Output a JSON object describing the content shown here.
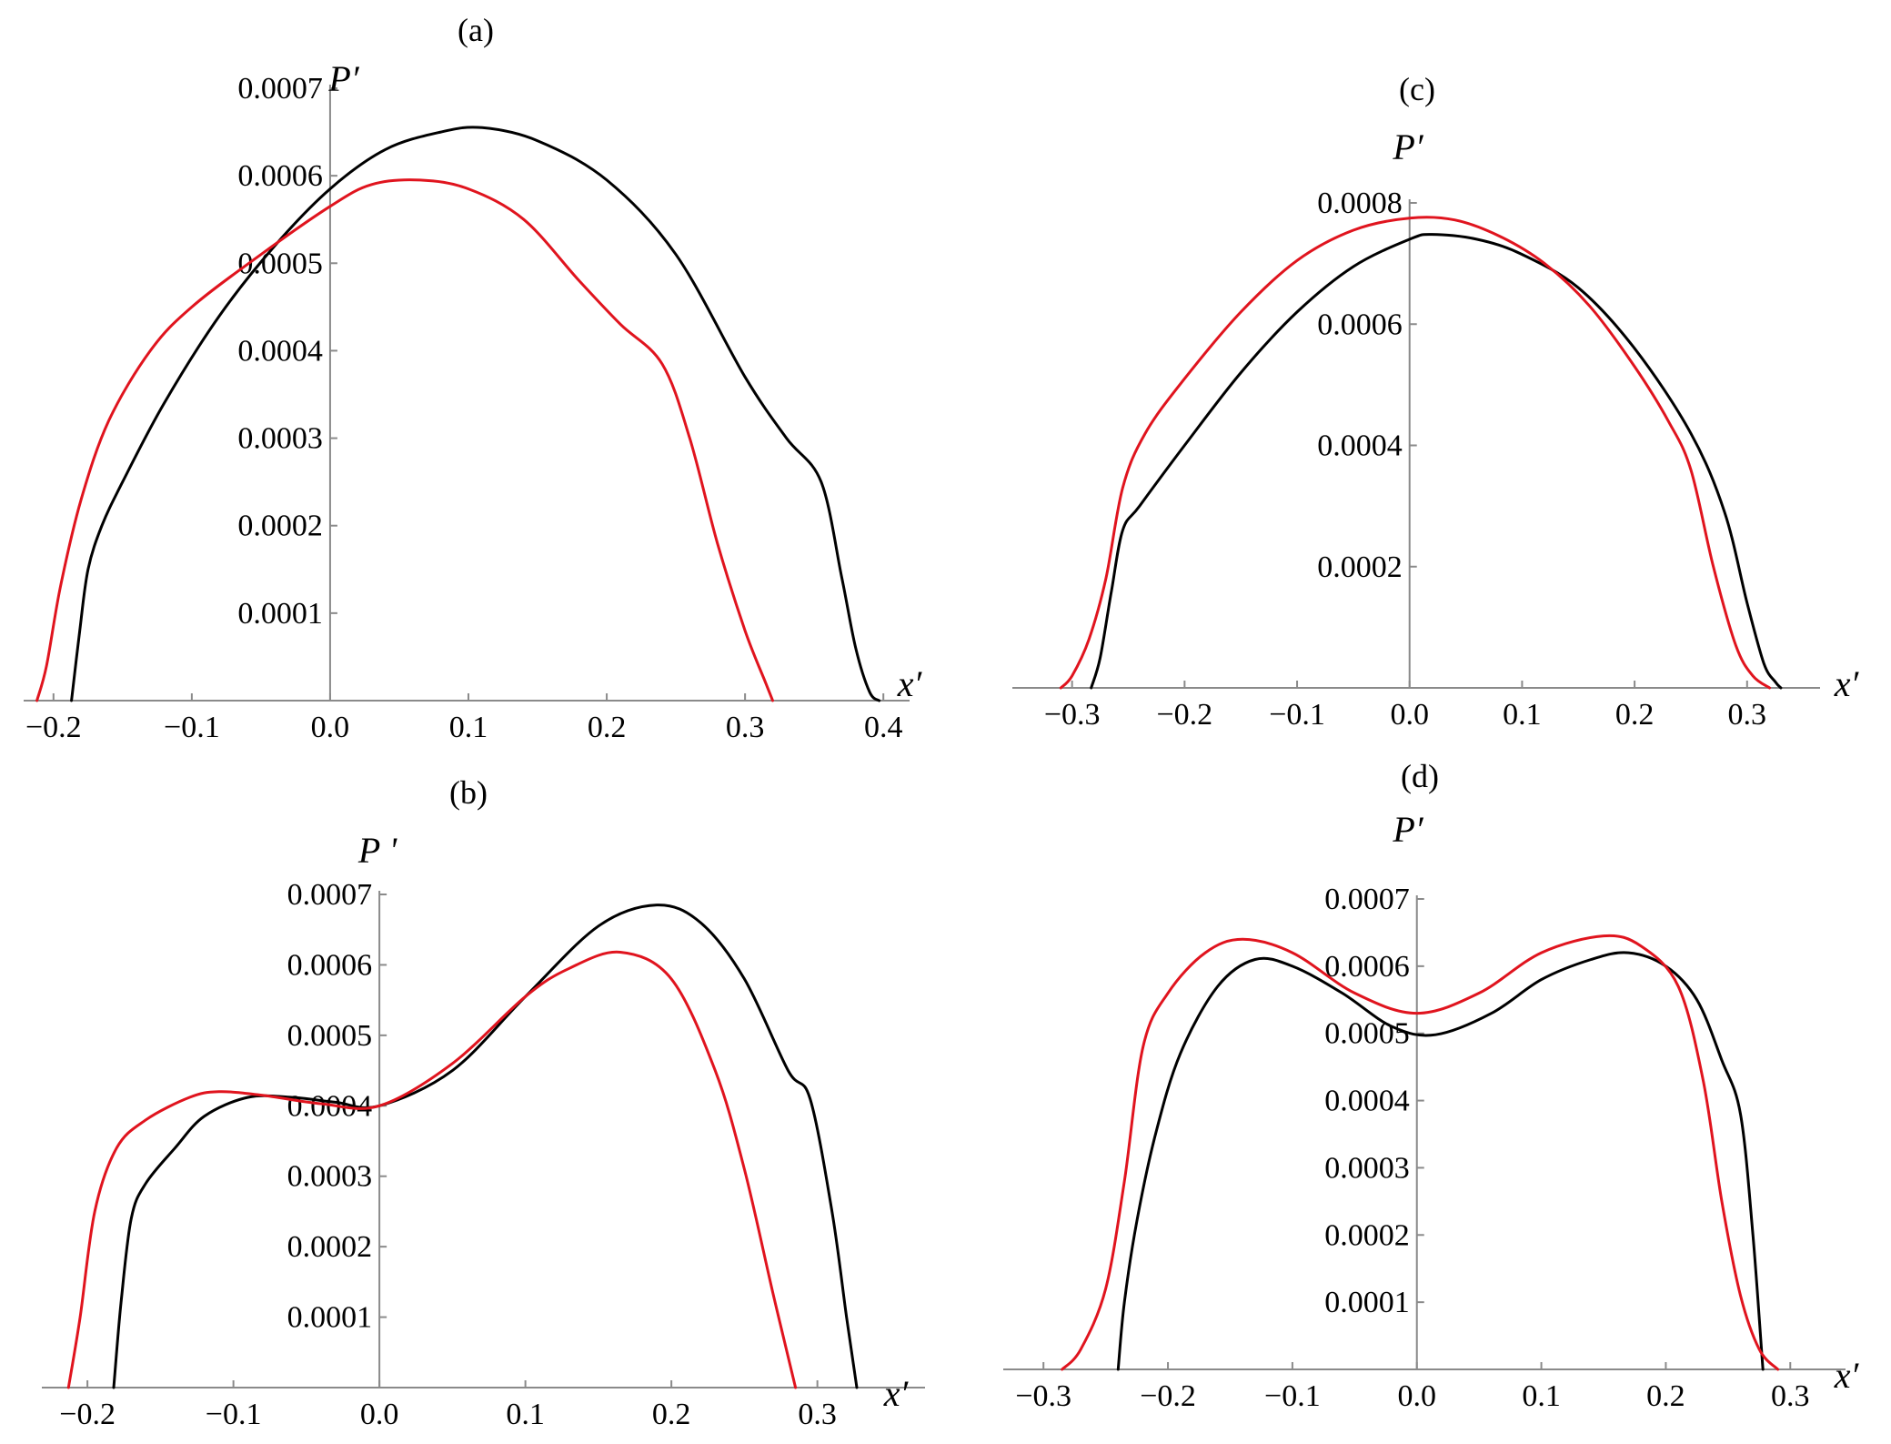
{
  "colors": {
    "series_black": "#000000",
    "series_red": "#e0141e",
    "axis": "#8a8a8a"
  },
  "chart_data": [
    {
      "id": "a",
      "type": "line",
      "panel_label": "(a)",
      "xlabel": "x′",
      "ylabel": "P′",
      "xlim": [
        -0.215,
        0.415
      ],
      "ylim": [
        0,
        0.0007
      ],
      "x_ticks": [
        -0.2,
        -0.1,
        0.0,
        0.1,
        0.2,
        0.3,
        0.4
      ],
      "x_tick_labels": [
        "−0.2",
        "−0.1",
        "0.0",
        "0.1",
        "0.2",
        "0.3",
        "0.4"
      ],
      "y_ticks": [
        0.0001,
        0.0002,
        0.0003,
        0.0004,
        0.0005,
        0.0006,
        0.0007
      ],
      "y_tick_labels": [
        "0.0001",
        "0.0002",
        "0.0003",
        "0.0004",
        "0.0005",
        "0.0006",
        "0.0007"
      ],
      "series": [
        {
          "color": "#000000",
          "x": [
            -0.187,
            -0.181,
            -0.175,
            -0.165,
            -0.15,
            -0.12,
            -0.08,
            -0.04,
            0.0,
            0.04,
            0.08,
            0.11,
            0.15,
            0.2,
            0.25,
            0.3,
            0.33,
            0.355,
            0.37,
            0.38,
            0.39,
            0.397
          ],
          "y": [
            0.0,
            8e-05,
            0.00015,
            0.0002,
            0.00025,
            0.00034,
            0.00044,
            0.00052,
            0.000585,
            0.00063,
            0.00065,
            0.000655,
            0.00064,
            0.000595,
            0.00051,
            0.00037,
            0.0003,
            0.00025,
            0.00014,
            6e-05,
            1e-05,
            0.0
          ]
        },
        {
          "color": "#e0141e",
          "x": [
            -0.212,
            -0.205,
            -0.195,
            -0.18,
            -0.16,
            -0.13,
            -0.1,
            -0.05,
            0.0,
            0.03,
            0.065,
            0.1,
            0.14,
            0.18,
            0.21,
            0.24,
            0.26,
            0.28,
            0.3,
            0.315,
            0.32
          ],
          "y": [
            0.0,
            4e-05,
            0.00013,
            0.00023,
            0.00032,
            0.0004,
            0.00045,
            0.00051,
            0.000565,
            0.00059,
            0.000595,
            0.000585,
            0.00055,
            0.00048,
            0.00043,
            0.000385,
            0.0003,
            0.00018,
            8e-05,
            2e-05,
            0.0
          ]
        }
      ]
    },
    {
      "id": "b",
      "type": "line",
      "panel_label": "(b)",
      "xlabel": "x′",
      "ylabel": "P '",
      "xlim": [
        -0.225,
        0.37
      ],
      "ylim": [
        0,
        0.0007
      ],
      "x_ticks": [
        -0.2,
        -0.1,
        0.0,
        0.1,
        0.2,
        0.3
      ],
      "x_tick_labels": [
        "−0.2",
        "−0.1",
        "0.0",
        "0.1",
        "0.2",
        "0.3"
      ],
      "y_ticks": [
        0.0001,
        0.0002,
        0.0003,
        0.0004,
        0.0005,
        0.0006,
        0.0007
      ],
      "y_tick_labels": [
        "0.0001",
        "0.0002",
        "0.0003",
        "0.0004",
        "0.0005",
        "0.0006",
        "0.0007"
      ],
      "series": [
        {
          "color": "#000000",
          "x": [
            -0.182,
            -0.177,
            -0.17,
            -0.16,
            -0.14,
            -0.12,
            -0.09,
            -0.06,
            -0.03,
            0.0,
            0.05,
            0.1,
            0.15,
            0.19,
            0.22,
            0.25,
            0.28,
            0.295,
            0.31,
            0.32,
            0.327
          ],
          "y": [
            0.0,
            0.00012,
            0.00024,
            0.00029,
            0.00034,
            0.000385,
            0.000412,
            0.000412,
            0.000405,
            0.0004,
            0.00045,
            0.000555,
            0.000655,
            0.000685,
            0.00066,
            0.00058,
            0.00045,
            0.00041,
            0.00025,
            0.0001,
            0.0
          ]
        },
        {
          "color": "#e0141e",
          "x": [
            -0.213,
            -0.205,
            -0.195,
            -0.18,
            -0.16,
            -0.13,
            -0.11,
            -0.08,
            -0.04,
            0.0,
            0.05,
            0.1,
            0.13,
            0.165,
            0.2,
            0.23,
            0.25,
            0.27,
            0.285
          ],
          "y": [
            0.0,
            0.0001,
            0.00025,
            0.00034,
            0.00038,
            0.000412,
            0.00042,
            0.000415,
            0.000403,
            0.0004,
            0.00046,
            0.000555,
            0.000595,
            0.000618,
            0.00058,
            0.00045,
            0.00031,
            0.00013,
            0.0
          ]
        }
      ]
    },
    {
      "id": "c",
      "type": "line",
      "panel_label": "(c)",
      "xlabel": "x′",
      "ylabel": "P′",
      "xlim": [
        -0.345,
        0.36
      ],
      "ylim": [
        0,
        0.0008
      ],
      "x_ticks": [
        -0.3,
        -0.2,
        -0.1,
        0.0,
        0.1,
        0.2,
        0.3
      ],
      "x_tick_labels": [
        "−0.3",
        "−0.2",
        "−0.1",
        "0.0",
        "0.1",
        "0.2",
        "0.3"
      ],
      "y_ticks": [
        0.0002,
        0.0004,
        0.0006,
        0.0008
      ],
      "y_tick_labels": [
        "0.0002",
        "0.0004",
        "0.0006",
        "0.0008"
      ],
      "series": [
        {
          "color": "#000000",
          "x": [
            -0.283,
            -0.275,
            -0.265,
            -0.255,
            -0.24,
            -0.2,
            -0.15,
            -0.1,
            -0.05,
            0.0,
            0.02,
            0.06,
            0.1,
            0.15,
            0.2,
            0.25,
            0.28,
            0.3,
            0.315,
            0.325,
            0.33
          ],
          "y": [
            0.0,
            5e-05,
            0.00016,
            0.00026,
            0.0003,
            0.0004,
            0.00052,
            0.00062,
            0.000695,
            0.00074,
            0.000748,
            0.00074,
            0.000715,
            0.00066,
            0.00056,
            0.00042,
            0.00029,
            0.00014,
            4e-05,
            1e-05,
            0.0
          ]
        },
        {
          "color": "#e0141e",
          "x": [
            -0.31,
            -0.3,
            -0.285,
            -0.27,
            -0.255,
            -0.235,
            -0.2,
            -0.15,
            -0.1,
            -0.05,
            0.0,
            0.04,
            0.08,
            0.12,
            0.16,
            0.2,
            0.23,
            0.25,
            0.27,
            0.29,
            0.305,
            0.32
          ],
          "y": [
            0.0,
            2e-05,
            8e-05,
            0.00018,
            0.00033,
            0.00042,
            0.00051,
            0.00062,
            0.000705,
            0.000755,
            0.000775,
            0.000772,
            0.000745,
            0.0007,
            0.00063,
            0.00053,
            0.00044,
            0.00036,
            0.0002,
            7e-05,
            2e-05,
            0.0
          ]
        }
      ]
    },
    {
      "id": "d",
      "type": "line",
      "panel_label": "(d)",
      "xlabel": "x′",
      "ylabel": "P′",
      "xlim": [
        -0.325,
        0.34
      ],
      "ylim": [
        0,
        0.0007
      ],
      "x_ticks": [
        -0.3,
        -0.2,
        -0.1,
        0.0,
        0.1,
        0.2,
        0.3
      ],
      "x_tick_labels": [
        "−0.3",
        "−0.2",
        "−0.1",
        "0.0",
        "0.1",
        "0.2",
        "0.3"
      ],
      "y_ticks": [
        0.0001,
        0.0002,
        0.0003,
        0.0004,
        0.0005,
        0.0006,
        0.0007
      ],
      "y_tick_labels": [
        "0.0001",
        "0.0002",
        "0.0003",
        "0.0004",
        "0.0005",
        "0.0006",
        "0.0007"
      ],
      "series": [
        {
          "color": "#000000",
          "x": [
            -0.24,
            -0.235,
            -0.225,
            -0.21,
            -0.19,
            -0.16,
            -0.13,
            -0.1,
            -0.06,
            -0.02,
            0.015,
            0.06,
            0.1,
            0.14,
            0.17,
            0.2,
            0.225,
            0.245,
            0.26,
            0.27,
            0.278
          ],
          "y": [
            0.0,
            0.0001,
            0.00022,
            0.00035,
            0.00047,
            0.00057,
            0.00061,
            0.0006,
            0.00056,
            0.00051,
            0.000498,
            0.00053,
            0.00058,
            0.00061,
            0.00062,
            0.0006,
            0.00055,
            0.00046,
            0.00038,
            0.0002,
            0.0
          ]
        },
        {
          "color": "#e0141e",
          "x": [
            -0.285,
            -0.27,
            -0.25,
            -0.235,
            -0.22,
            -0.2,
            -0.17,
            -0.14,
            -0.1,
            -0.05,
            0.0,
            0.05,
            0.1,
            0.15,
            0.18,
            0.21,
            0.23,
            0.245,
            0.26,
            0.275,
            0.29
          ],
          "y": [
            0.0,
            3e-05,
            0.00012,
            0.00028,
            0.00048,
            0.00056,
            0.00062,
            0.00064,
            0.00062,
            0.00056,
            0.00053,
            0.00056,
            0.00062,
            0.000645,
            0.00063,
            0.00057,
            0.00043,
            0.00025,
            0.00011,
            3e-05,
            0.0
          ]
        }
      ]
    }
  ]
}
